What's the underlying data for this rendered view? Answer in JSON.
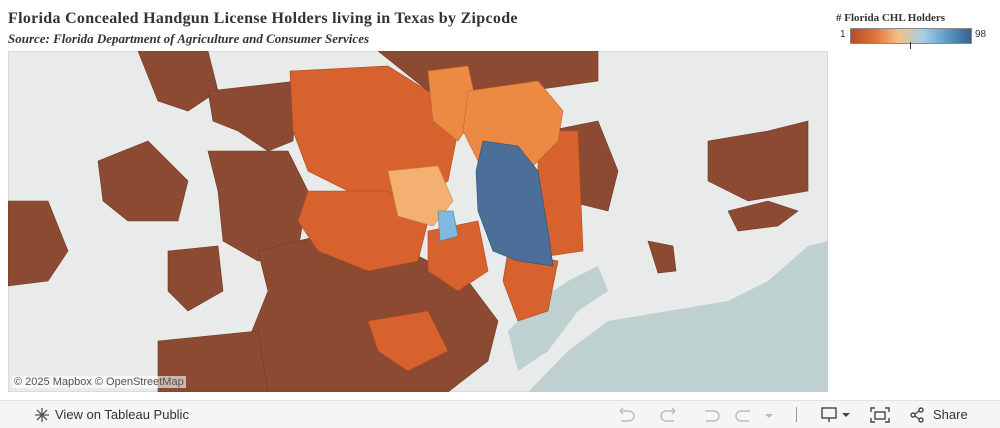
{
  "header": {
    "title": "Florida Concealed Handgun License Holders living in Texas by Zipcode",
    "subtitle": "Source: Florida Department of Agriculture and Consumer Services"
  },
  "legend": {
    "title": "# Florida CHL Holders",
    "min": 1,
    "max": 98
  },
  "map": {
    "attribution": "© 2025 Mapbox © OpenStreetMap"
  },
  "toolbar": {
    "view": "View on Tableau Public",
    "share": "Share"
  }
}
